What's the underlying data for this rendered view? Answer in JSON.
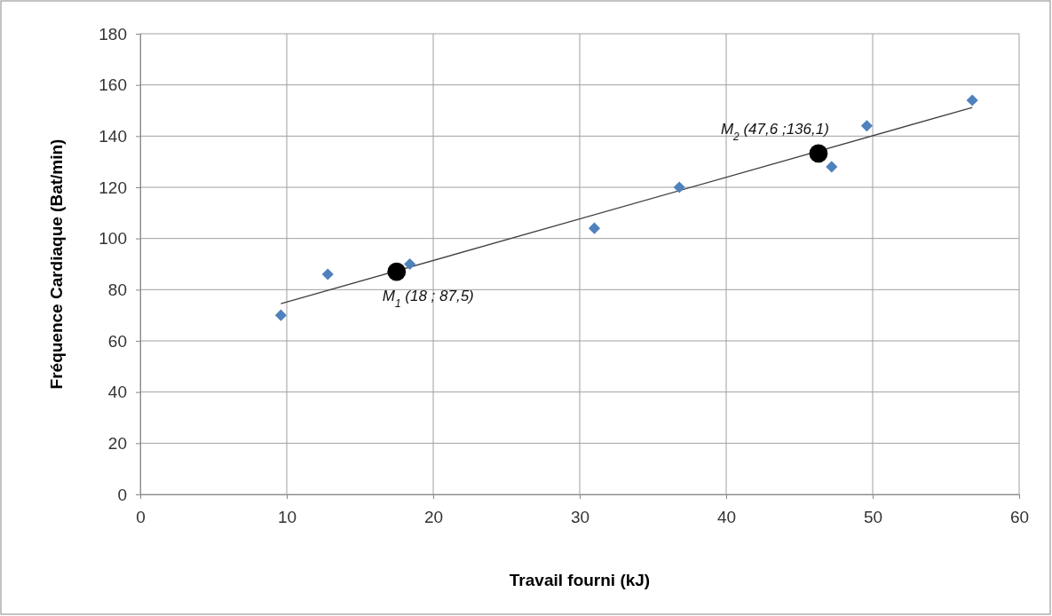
{
  "chart_data": {
    "type": "scatter",
    "xlabel": "Travail fourni (kJ)",
    "ylabel": "Fréquence Cardiaque (Bat/min)",
    "xlim": [
      0,
      60
    ],
    "xticks": [
      0,
      10,
      20,
      30,
      40,
      50,
      60
    ],
    "ylim": [
      0,
      180
    ],
    "yticks": [
      0,
      20,
      40,
      60,
      80,
      100,
      120,
      140,
      160,
      180
    ],
    "grid": true,
    "series": [
      {
        "marker": "diamond",
        "color": "#4f81bd",
        "x": [
          9.6,
          12.8,
          18.4,
          31,
          36.8,
          47.2,
          49.6,
          56.8
        ],
        "values": [
          70,
          86,
          90,
          104,
          120,
          128,
          144,
          154
        ]
      },
      {
        "type": "line",
        "marker": "none",
        "color": "#404040",
        "x": [
          9.6,
          56.8
        ],
        "values": [
          74.5,
          151.2
        ]
      },
      {
        "marker": "circle",
        "color": "#000000",
        "x": [
          17.5,
          46.3
        ],
        "values": [
          87,
          133.2
        ]
      }
    ],
    "annotations": [
      {
        "text": "M$_{1}$ (18 ; 87,5)",
        "x": 17.5,
        "y": 87
      },
      {
        "text": "M$_{2}$ (47,6 ;136,1)",
        "x": 46.3,
        "y": 133.2
      }
    ]
  }
}
